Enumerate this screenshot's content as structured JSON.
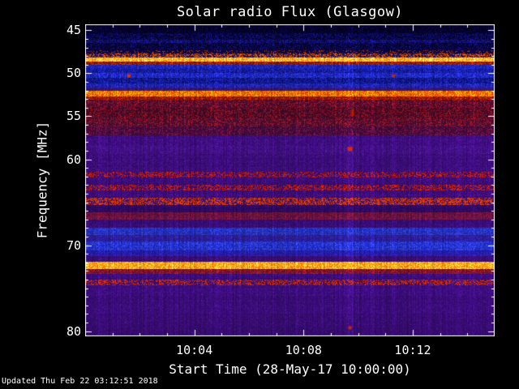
{
  "header": {
    "title": "Solar radio Flux (Glasgow)"
  },
  "footer": {
    "updated": "Updated Thu Feb 22 03:12:51 2018"
  },
  "chart_data": {
    "type": "heatmap",
    "title": "Solar radio Flux (Glasgow)",
    "xlabel": "Start Time (28-May-17 10:00:00)",
    "ylabel": "Frequency [MHz]",
    "x_minutes_range": [
      0,
      15
    ],
    "x_start_time": "10:00:00",
    "x_ticks": [
      {
        "minute": 4,
        "label": "10:04"
      },
      {
        "minute": 8,
        "label": "10:08"
      },
      {
        "minute": 12,
        "label": "10:12"
      }
    ],
    "x_minor_step_min": 1,
    "ylim": [
      44.3,
      80.6
    ],
    "y_axis_inverted": true,
    "y_ticks": [
      {
        "f": 45,
        "label": "45"
      },
      {
        "f": 50,
        "label": "50"
      },
      {
        "f": 55,
        "label": "55"
      },
      {
        "f": 60,
        "label": "60"
      },
      {
        "f": 70,
        "label": "70"
      },
      {
        "f": 80,
        "label": "80"
      }
    ],
    "y_minor_step": 1,
    "colors": {
      "background": "#000000",
      "frame": "#ffffff",
      "text": "#ffffff"
    },
    "bands": [
      {
        "f_start": 44.3,
        "f_end": 45.3,
        "base": "#03001c",
        "speckle": "#0a0550",
        "density": 0.3
      },
      {
        "f_start": 45.3,
        "f_end": 46.1,
        "base": "#05022e",
        "speckle": "#101080",
        "density": 0.35
      },
      {
        "f_start": 46.1,
        "f_end": 46.5,
        "base": "#0a0846",
        "speckle": "#1a18a0",
        "density": 0.4
      },
      {
        "f_start": 46.5,
        "f_end": 47.3,
        "base": "#05022e",
        "speckle": "#101080",
        "density": 0.3
      },
      {
        "f_start": 47.3,
        "f_end": 47.7,
        "base": "#0a0540",
        "speckle": "#aa3300",
        "density": 0.18
      },
      {
        "f_start": 47.7,
        "f_end": 48.15,
        "base": "#1a1160",
        "speckle": "#dd5500",
        "density": 0.45
      },
      {
        "f_start": 48.15,
        "f_end": 48.65,
        "base": "#ff9100",
        "speckle": "#ffd95e",
        "density": 0.55
      },
      {
        "f_start": 48.65,
        "f_end": 49.05,
        "base": "#7a1500",
        "speckle": "#cc3300",
        "density": 0.35
      },
      {
        "f_start": 49.05,
        "f_end": 49.5,
        "base": "#131ba8",
        "speckle": "#2a35d8",
        "density": 0.4
      },
      {
        "f_start": 49.5,
        "f_end": 50.0,
        "base": "#0e148c",
        "speckle": "#232cc8",
        "density": 0.4
      },
      {
        "f_start": 50.0,
        "f_end": 50.55,
        "base": "#151ead",
        "speckle": "#2f3adf",
        "density": 0.45
      },
      {
        "f_start": 50.55,
        "f_end": 51.15,
        "base": "#0a0f72",
        "speckle": "#1c25b5",
        "density": 0.4
      },
      {
        "f_start": 51.15,
        "f_end": 51.65,
        "base": "#141c9e",
        "speckle": "#2a34d2",
        "density": 0.4
      },
      {
        "f_start": 51.65,
        "f_end": 52.05,
        "base": "#2c1277",
        "speckle": "#3d1f96",
        "density": 0.3
      },
      {
        "f_start": 52.05,
        "f_end": 52.65,
        "base": "#f04800",
        "speckle": "#ffaa00",
        "density": 0.5
      },
      {
        "f_start": 52.65,
        "f_end": 53.1,
        "base": "#8a1200",
        "speckle": "#d03300",
        "density": 0.3
      },
      {
        "f_start": 53.1,
        "f_end": 54.0,
        "base": "#470a2e",
        "speckle": "#a01525",
        "density": 0.3
      },
      {
        "f_start": 54.0,
        "f_end": 55.2,
        "base": "#420928",
        "speckle": "#991320",
        "density": 0.32
      },
      {
        "f_start": 55.2,
        "f_end": 56.2,
        "base": "#4a0c30",
        "speckle": "#aa1828",
        "density": 0.3
      },
      {
        "f_start": 56.2,
        "f_end": 57.2,
        "base": "#400a3c",
        "speckle": "#8a1540",
        "density": 0.25
      },
      {
        "f_start": 57.2,
        "f_end": 58.4,
        "base": "#3a0a78",
        "speckle": "#4c1694",
        "density": 0.3
      },
      {
        "f_start": 58.4,
        "f_end": 59.4,
        "base": "#3c0c7c",
        "speckle": "#4e1898",
        "density": 0.3
      },
      {
        "f_start": 59.4,
        "f_end": 60.9,
        "base": "#380a74",
        "speckle": "#481590",
        "density": 0.28
      },
      {
        "f_start": 60.9,
        "f_end": 61.5,
        "base": "#3a0c7a",
        "speckle": "#4a1692",
        "density": 0.25
      },
      {
        "f_start": 61.5,
        "f_end": 62.1,
        "base": "#3c0a76",
        "speckle": "#cc2200",
        "density": 0.4
      },
      {
        "f_start": 62.1,
        "f_end": 63.0,
        "base": "#380a72",
        "speckle": "#471490",
        "density": 0.28
      },
      {
        "f_start": 63.0,
        "f_end": 63.6,
        "base": "#3c0a76",
        "speckle": "#cc2200",
        "density": 0.42
      },
      {
        "f_start": 63.6,
        "f_end": 64.5,
        "base": "#3a0a74",
        "speckle": "#4a1590",
        "density": 0.3
      },
      {
        "f_start": 64.5,
        "f_end": 65.3,
        "base": "#42106e",
        "speckle": "#e03c00",
        "density": 0.5
      },
      {
        "f_start": 65.3,
        "f_end": 66.2,
        "base": "#2c085e",
        "speckle": "#3a1078",
        "density": 0.25
      },
      {
        "f_start": 66.2,
        "f_end": 67.0,
        "base": "#5a0f46",
        "speckle": "#8c1838",
        "density": 0.4
      },
      {
        "f_start": 67.0,
        "f_end": 68.0,
        "base": "#340a6c",
        "speckle": "#431388",
        "density": 0.28
      },
      {
        "f_start": 68.0,
        "f_end": 68.8,
        "base": "#1e2ab4",
        "speckle": "#3644dc",
        "density": 0.35
      },
      {
        "f_start": 68.8,
        "f_end": 69.6,
        "base": "#281a92",
        "speckle": "#3828b0",
        "density": 0.3
      },
      {
        "f_start": 69.6,
        "f_end": 70.6,
        "base": "#1c28c0",
        "speckle": "#3646e6",
        "density": 0.45
      },
      {
        "f_start": 70.6,
        "f_end": 71.3,
        "base": "#2218a0",
        "speckle": "#3226be",
        "density": 0.35
      },
      {
        "f_start": 71.3,
        "f_end": 71.9,
        "base": "#360c72",
        "speckle": "#46168c",
        "density": 0.25
      },
      {
        "f_start": 71.9,
        "f_end": 72.75,
        "base": "#ff8000",
        "speckle": "#ffd040",
        "density": 0.5
      },
      {
        "f_start": 72.75,
        "f_end": 73.3,
        "base": "#6e1030",
        "speckle": "#b02020",
        "density": 0.3
      },
      {
        "f_start": 73.3,
        "f_end": 74.0,
        "base": "#380a74",
        "speckle": "#481590",
        "density": 0.25
      },
      {
        "f_start": 74.0,
        "f_end": 74.7,
        "base": "#3c0c76",
        "speckle": "#d52d00",
        "density": 0.45
      },
      {
        "f_start": 74.7,
        "f_end": 76.0,
        "base": "#3a0a78",
        "speckle": "#491591",
        "density": 0.28
      },
      {
        "f_start": 76.0,
        "f_end": 78.0,
        "base": "#370a72",
        "speckle": "#46138c",
        "density": 0.26
      },
      {
        "f_start": 78.0,
        "f_end": 80.6,
        "base": "#350a6e",
        "speckle": "#441388",
        "density": 0.25
      }
    ],
    "events": [
      {
        "minute": 1.6,
        "f": 50.3,
        "color": "#e03000",
        "w": 4,
        "h": 4
      },
      {
        "minute": 11.3,
        "f": 50.3,
        "color": "#c22800",
        "w": 3,
        "h": 4
      },
      {
        "minute": 9.7,
        "f": 58.8,
        "color": "#e02800",
        "w": 6,
        "h": 5
      },
      {
        "minute": 9.8,
        "f": 54.6,
        "color": "#b02000",
        "w": 3,
        "h": 8
      },
      {
        "minute": 9.7,
        "f": 79.6,
        "color": "#cc2200",
        "w": 4,
        "h": 4
      }
    ],
    "vertical_stripes": [
      {
        "minute": 9.7,
        "width_min": 0.18,
        "gain": 1.22
      }
    ]
  }
}
